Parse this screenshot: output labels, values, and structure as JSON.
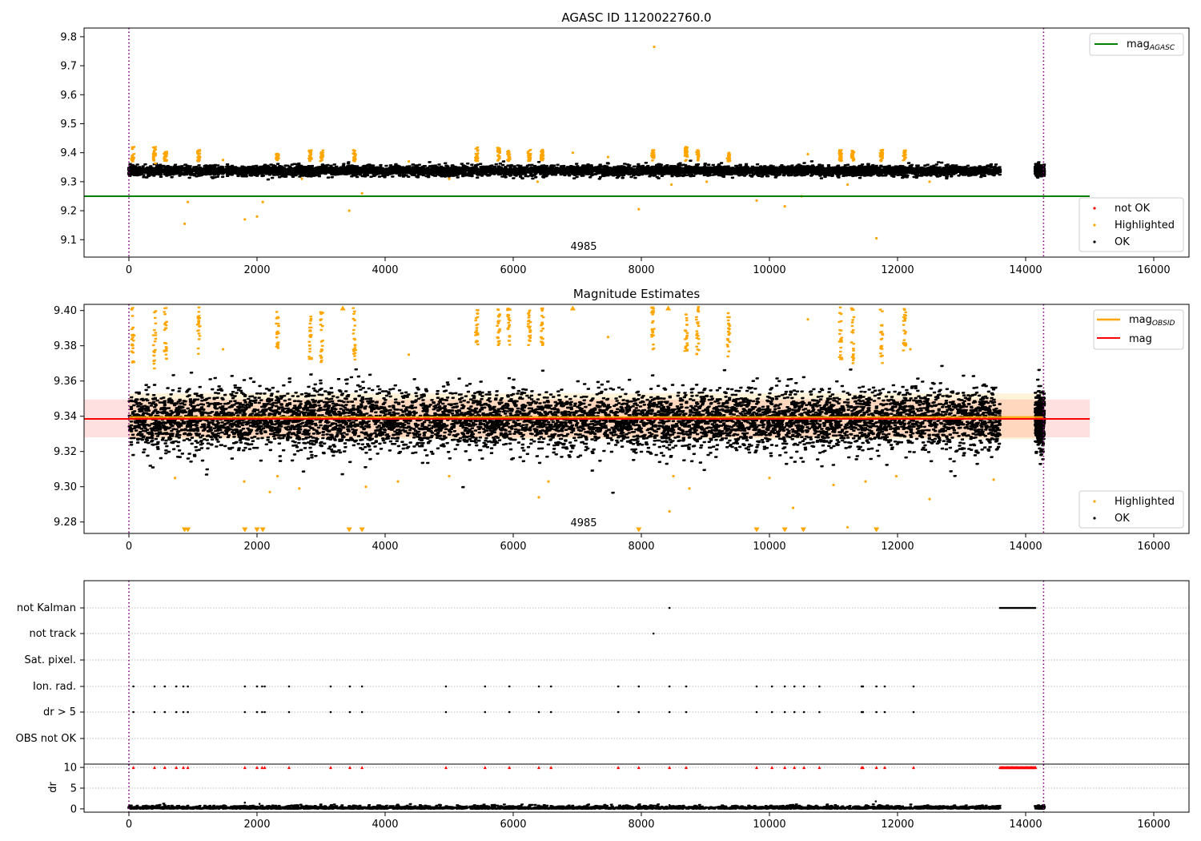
{
  "chart_data": [
    {
      "type": "scatter",
      "title": "AGASC ID 1120022760.0",
      "xlim": [
        -700,
        16550
      ],
      "ylim": [
        9.04,
        9.83
      ],
      "xticks": [
        0,
        2000,
        4000,
        6000,
        8000,
        10000,
        12000,
        14000,
        16000
      ],
      "yticks": [
        9.1,
        9.2,
        9.3,
        9.4,
        9.5,
        9.6,
        9.7,
        9.8
      ],
      "ytick_decimals": 1,
      "band_center": 9.338,
      "band_noise": 0.0085,
      "band_end": 13600,
      "tail_start": 14150,
      "tail_end": 14290,
      "vlines": [
        0,
        14280
      ],
      "annotation": {
        "text": "4985",
        "x": 7100
      },
      "lines": [
        {
          "name": "mag_AGASC",
          "legend_main": "mag",
          "legend_sub": "AGASC",
          "color": "#008000",
          "y": 9.25,
          "x0": -700,
          "x1": 15000
        }
      ],
      "highlight_clusters": [
        {
          "x": 60,
          "lo": 9.36,
          "hi": 9.42
        },
        {
          "x": 400,
          "lo": 9.36,
          "hi": 9.42
        },
        {
          "x": 570,
          "lo": 9.37,
          "hi": 9.41
        },
        {
          "x": 1090,
          "lo": 9.37,
          "hi": 9.41
        },
        {
          "x": 2320,
          "lo": 9.37,
          "hi": 9.4
        },
        {
          "x": 2830,
          "lo": 9.37,
          "hi": 9.41
        },
        {
          "x": 3010,
          "lo": 9.37,
          "hi": 9.41
        },
        {
          "x": 3520,
          "lo": 9.37,
          "hi": 9.41
        },
        {
          "x": 5430,
          "lo": 9.37,
          "hi": 9.42
        },
        {
          "x": 5770,
          "lo": 9.37,
          "hi": 9.42
        },
        {
          "x": 5930,
          "lo": 9.37,
          "hi": 9.41
        },
        {
          "x": 6250,
          "lo": 9.37,
          "hi": 9.41
        },
        {
          "x": 6450,
          "lo": 9.37,
          "hi": 9.41
        },
        {
          "x": 8180,
          "lo": 9.37,
          "hi": 9.41
        },
        {
          "x": 8700,
          "lo": 9.37,
          "hi": 9.42
        },
        {
          "x": 8880,
          "lo": 9.37,
          "hi": 9.41
        },
        {
          "x": 9360,
          "lo": 9.37,
          "hi": 9.4
        },
        {
          "x": 11110,
          "lo": 9.37,
          "hi": 9.41
        },
        {
          "x": 11300,
          "lo": 9.37,
          "hi": 9.41
        },
        {
          "x": 11750,
          "lo": 9.37,
          "hi": 9.41
        },
        {
          "x": 12110,
          "lo": 9.37,
          "hi": 9.41
        }
      ],
      "highlight_points": [
        [
          870,
          9.155
        ],
        [
          920,
          9.23
        ],
        [
          1810,
          9.17
        ],
        [
          2000,
          9.18
        ],
        [
          2090,
          9.23
        ],
        [
          3440,
          9.2
        ],
        [
          3640,
          9.26
        ],
        [
          7960,
          9.205
        ],
        [
          8200,
          9.765
        ],
        [
          9800,
          9.235
        ],
        [
          10240,
          9.215
        ],
        [
          10500,
          9.25
        ],
        [
          11670,
          9.105
        ],
        [
          1470,
          9.375
        ],
        [
          7480,
          9.385
        ],
        [
          6930,
          9.4
        ],
        [
          4370,
          9.37
        ],
        [
          8470,
          9.29
        ],
        [
          11220,
          9.29
        ],
        [
          12500,
          9.3
        ],
        [
          10600,
          9.395
        ],
        [
          2700,
          9.31
        ],
        [
          9020,
          9.3
        ],
        [
          6380,
          9.3
        ],
        [
          5000,
          9.31
        ]
      ],
      "scatter_legend": [
        {
          "label": "not OK",
          "color": "#ff0000"
        },
        {
          "label": "Highlighted",
          "color": "#ffa500"
        },
        {
          "label": "OK",
          "color": "#000000"
        }
      ]
    },
    {
      "type": "scatter",
      "title": "Magnitude Estimates",
      "xlim": [
        -700,
        16550
      ],
      "ylim": [
        9.2735,
        9.4035
      ],
      "xticks": [
        0,
        2000,
        4000,
        6000,
        8000,
        10000,
        12000,
        14000,
        16000
      ],
      "yticks": [
        9.28,
        9.3,
        9.32,
        9.34,
        9.36,
        9.38,
        9.4
      ],
      "ytick_decimals": 2,
      "band_center": 9.338,
      "band_noise": 0.0085,
      "band_end": 13600,
      "tail_start": 14150,
      "tail_end": 14290,
      "vlines": [
        0,
        14280
      ],
      "annotation": {
        "text": "4985",
        "x": 7100
      },
      "shaded": [
        {
          "x0": -700,
          "x1": 15000,
          "lo": 9.328,
          "hi": 9.3495,
          "color": "#ff0000",
          "opacity": 0.12
        },
        {
          "x0": 0,
          "x1": 14280,
          "lo": 9.327,
          "hi": 9.353,
          "color": "#ffa500",
          "opacity": 0.15
        }
      ],
      "lines": [
        {
          "name": "mag_OBSID",
          "legend_main": "mag",
          "legend_sub": "OBSID",
          "color": "#ffa500",
          "y": 9.3395,
          "x0": 0,
          "x1": 14280
        },
        {
          "name": "mag",
          "legend_main": "mag",
          "legend_sub": "",
          "color": "#ff0000",
          "y": 9.3385,
          "x0": -700,
          "x1": 15000
        }
      ],
      "highlight_clusters": [
        {
          "x": 60,
          "lo": 9.37,
          "hi": 9.402
        },
        {
          "x": 400,
          "lo": 9.365,
          "hi": 9.402
        },
        {
          "x": 570,
          "lo": 9.37,
          "hi": 9.402
        },
        {
          "x": 1090,
          "lo": 9.375,
          "hi": 9.402
        },
        {
          "x": 2320,
          "lo": 9.378,
          "hi": 9.4
        },
        {
          "x": 2830,
          "lo": 9.37,
          "hi": 9.402
        },
        {
          "x": 3010,
          "lo": 9.37,
          "hi": 9.402
        },
        {
          "x": 3520,
          "lo": 9.37,
          "hi": 9.402
        },
        {
          "x": 5430,
          "lo": 9.38,
          "hi": 9.402
        },
        {
          "x": 5770,
          "lo": 9.38,
          "hi": 9.402
        },
        {
          "x": 5930,
          "lo": 9.38,
          "hi": 9.402
        },
        {
          "x": 6250,
          "lo": 9.38,
          "hi": 9.402
        },
        {
          "x": 6450,
          "lo": 9.38,
          "hi": 9.402
        },
        {
          "x": 8180,
          "lo": 9.375,
          "hi": 9.402
        },
        {
          "x": 8700,
          "lo": 9.375,
          "hi": 9.402
        },
        {
          "x": 8880,
          "lo": 9.375,
          "hi": 9.402
        },
        {
          "x": 9360,
          "lo": 9.372,
          "hi": 9.402
        },
        {
          "x": 11110,
          "lo": 9.372,
          "hi": 9.402
        },
        {
          "x": 11300,
          "lo": 9.37,
          "hi": 9.402
        },
        {
          "x": 11750,
          "lo": 9.37,
          "hi": 9.402
        },
        {
          "x": 12110,
          "lo": 9.376,
          "hi": 9.402
        }
      ],
      "highlight_points": [
        [
          1470,
          9.378
        ],
        [
          4370,
          9.375
        ],
        [
          7480,
          9.385
        ],
        [
          10600,
          9.395
        ],
        [
          12200,
          9.378
        ],
        [
          6400,
          9.294
        ],
        [
          8440,
          9.286
        ],
        [
          8750,
          9.299
        ],
        [
          10370,
          9.288
        ],
        [
          11220,
          9.277
        ],
        [
          12500,
          9.293
        ],
        [
          2200,
          9.297
        ],
        [
          1800,
          9.303
        ],
        [
          2320,
          9.306
        ],
        [
          3700,
          9.3
        ],
        [
          4200,
          9.303
        ],
        [
          5000,
          9.306
        ],
        [
          6550,
          9.303
        ],
        [
          8500,
          9.306
        ],
        [
          10000,
          9.305
        ],
        [
          11000,
          9.301
        ],
        [
          11500,
          9.303
        ],
        [
          11980,
          9.306
        ],
        [
          13500,
          9.304
        ],
        [
          720,
          9.305
        ],
        [
          2660,
          9.299
        ]
      ],
      "down_markers": [
        870,
        920,
        1810,
        2000,
        2090,
        3440,
        3640,
        7960,
        9800,
        10240,
        10530,
        11670
      ],
      "up_markers": [
        3340,
        6930,
        8420
      ],
      "scatter_legend": [
        {
          "label": "Highlighted",
          "color": "#ffa500"
        },
        {
          "label": "OK",
          "color": "#000000"
        }
      ]
    },
    {
      "type": "scatter",
      "title": "",
      "xlim": [
        -700,
        16550
      ],
      "xticks": [
        0,
        2000,
        4000,
        6000,
        8000,
        10000,
        12000,
        14000,
        16000
      ],
      "flag_rows": [
        "not Kalman",
        "not track",
        "Sat. pixel.",
        "Ion. rad.",
        "dr > 5",
        "OBS not OK"
      ],
      "flags": {
        "not Kalman": [
          8440
        ],
        "not track": [
          8190
        ],
        "Sat. pixel.": [],
        "Ion. rad.": [
          70,
          400,
          560,
          740,
          850,
          920,
          1810,
          2000,
          2080,
          2120,
          2500,
          3150,
          3450,
          3640,
          4950,
          5560,
          5940,
          6400,
          6590,
          7640,
          7960,
          8440,
          8700,
          9800,
          10040,
          10240,
          10390,
          10540,
          10780,
          11440,
          11460,
          11670,
          11800,
          12250
        ],
        "dr > 5": [
          70,
          400,
          560,
          740,
          850,
          920,
          1810,
          2000,
          2080,
          2120,
          2500,
          3150,
          3450,
          3640,
          4950,
          5560,
          5940,
          6400,
          6590,
          7640,
          7960,
          8440,
          8700,
          9800,
          10040,
          10240,
          10390,
          10540,
          10780,
          11440,
          11460,
          11670,
          11800,
          12250
        ],
        "OBS not OK": []
      },
      "not_kalman_range": [
        13600,
        14160
      ],
      "dr_panel": {
        "ylabel": "dr",
        "yticks": [
          0,
          5,
          10
        ],
        "ylim": [
          -0.8,
          10.8
        ],
        "ceiling": 10,
        "clip_range": [
          13600,
          14160
        ]
      }
    }
  ]
}
